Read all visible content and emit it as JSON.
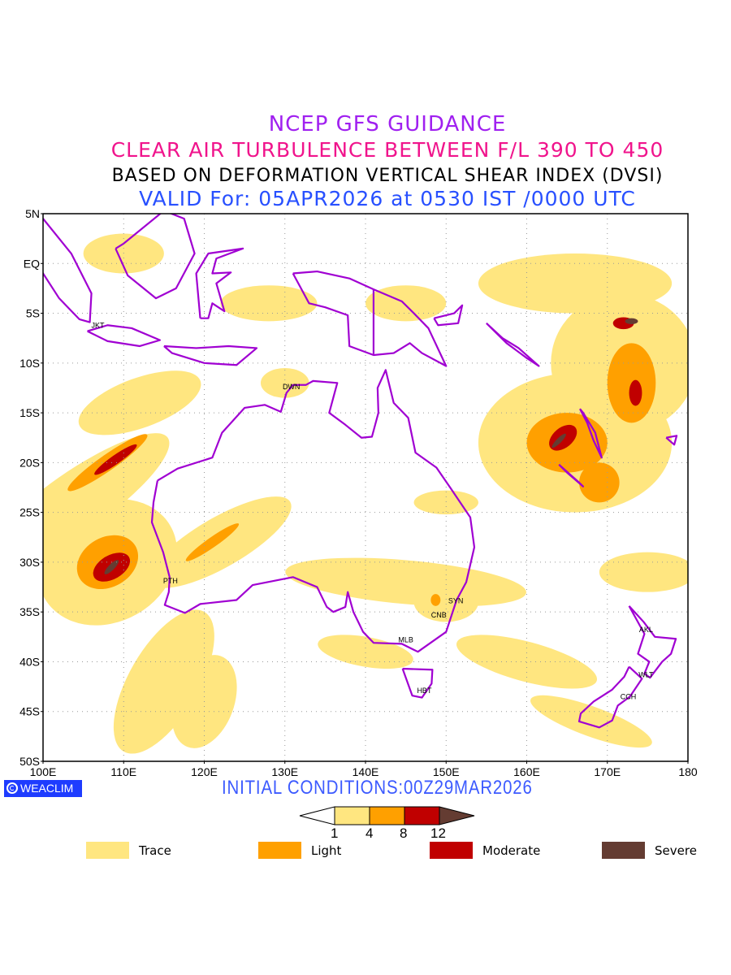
{
  "titles": {
    "line1": "NCEP GFS GUIDANCE",
    "line2": "CLEAR AIR TURBULENCE BETWEEN F/L 390 TO 450",
    "line3": "BASED ON DEFORMATION VERTICAL SHEAR INDEX (DVSI)",
    "line4": "VALID For: 05APR2026 at 0530 IST /0000 UTC"
  },
  "axes": {
    "lat_labels": [
      "5N",
      "EQ",
      "5S",
      "10S",
      "15S",
      "20S",
      "25S",
      "30S",
      "35S",
      "40S",
      "45S",
      "50S"
    ],
    "lon_labels": [
      "100E",
      "110E",
      "120E",
      "130E",
      "140E",
      "150E",
      "160E",
      "170E",
      "180"
    ]
  },
  "cities": [
    {
      "name": "JKT",
      "lon": 106.8,
      "lat": -6.2
    },
    {
      "name": "DWN",
      "lon": 130.8,
      "lat": -12.4
    },
    {
      "name": "PTH",
      "lon": 115.8,
      "lat": -31.9
    },
    {
      "name": "SYN",
      "lon": 151.2,
      "lat": -33.9
    },
    {
      "name": "CNB",
      "lon": 149.1,
      "lat": -35.3
    },
    {
      "name": "MLB",
      "lon": 145.0,
      "lat": -37.8
    },
    {
      "name": "HBT",
      "lon": 147.3,
      "lat": -42.9
    },
    {
      "name": "AKL",
      "lon": 174.8,
      "lat": -36.8
    },
    {
      "name": "WLT",
      "lon": 174.8,
      "lat": -41.3
    },
    {
      "name": "CCH",
      "lon": 172.6,
      "lat": -43.5
    }
  ],
  "brand": "WEACLIM",
  "initial_conditions": "INITIAL CONDITIONS:00Z29MAR2026",
  "colorbar": {
    "thresholds": [
      "1",
      "4",
      "8",
      "12"
    ],
    "colors": [
      "#ffe680",
      "#ffa000",
      "#c00000",
      "#643c32"
    ]
  },
  "legend": [
    {
      "label": "Trace",
      "color": "#ffe680"
    },
    {
      "label": "Light",
      "color": "#ffa000"
    },
    {
      "label": "Moderate",
      "color": "#c00000"
    },
    {
      "label": "Severe",
      "color": "#643c32"
    }
  ],
  "coast_color": "#a000d2"
}
